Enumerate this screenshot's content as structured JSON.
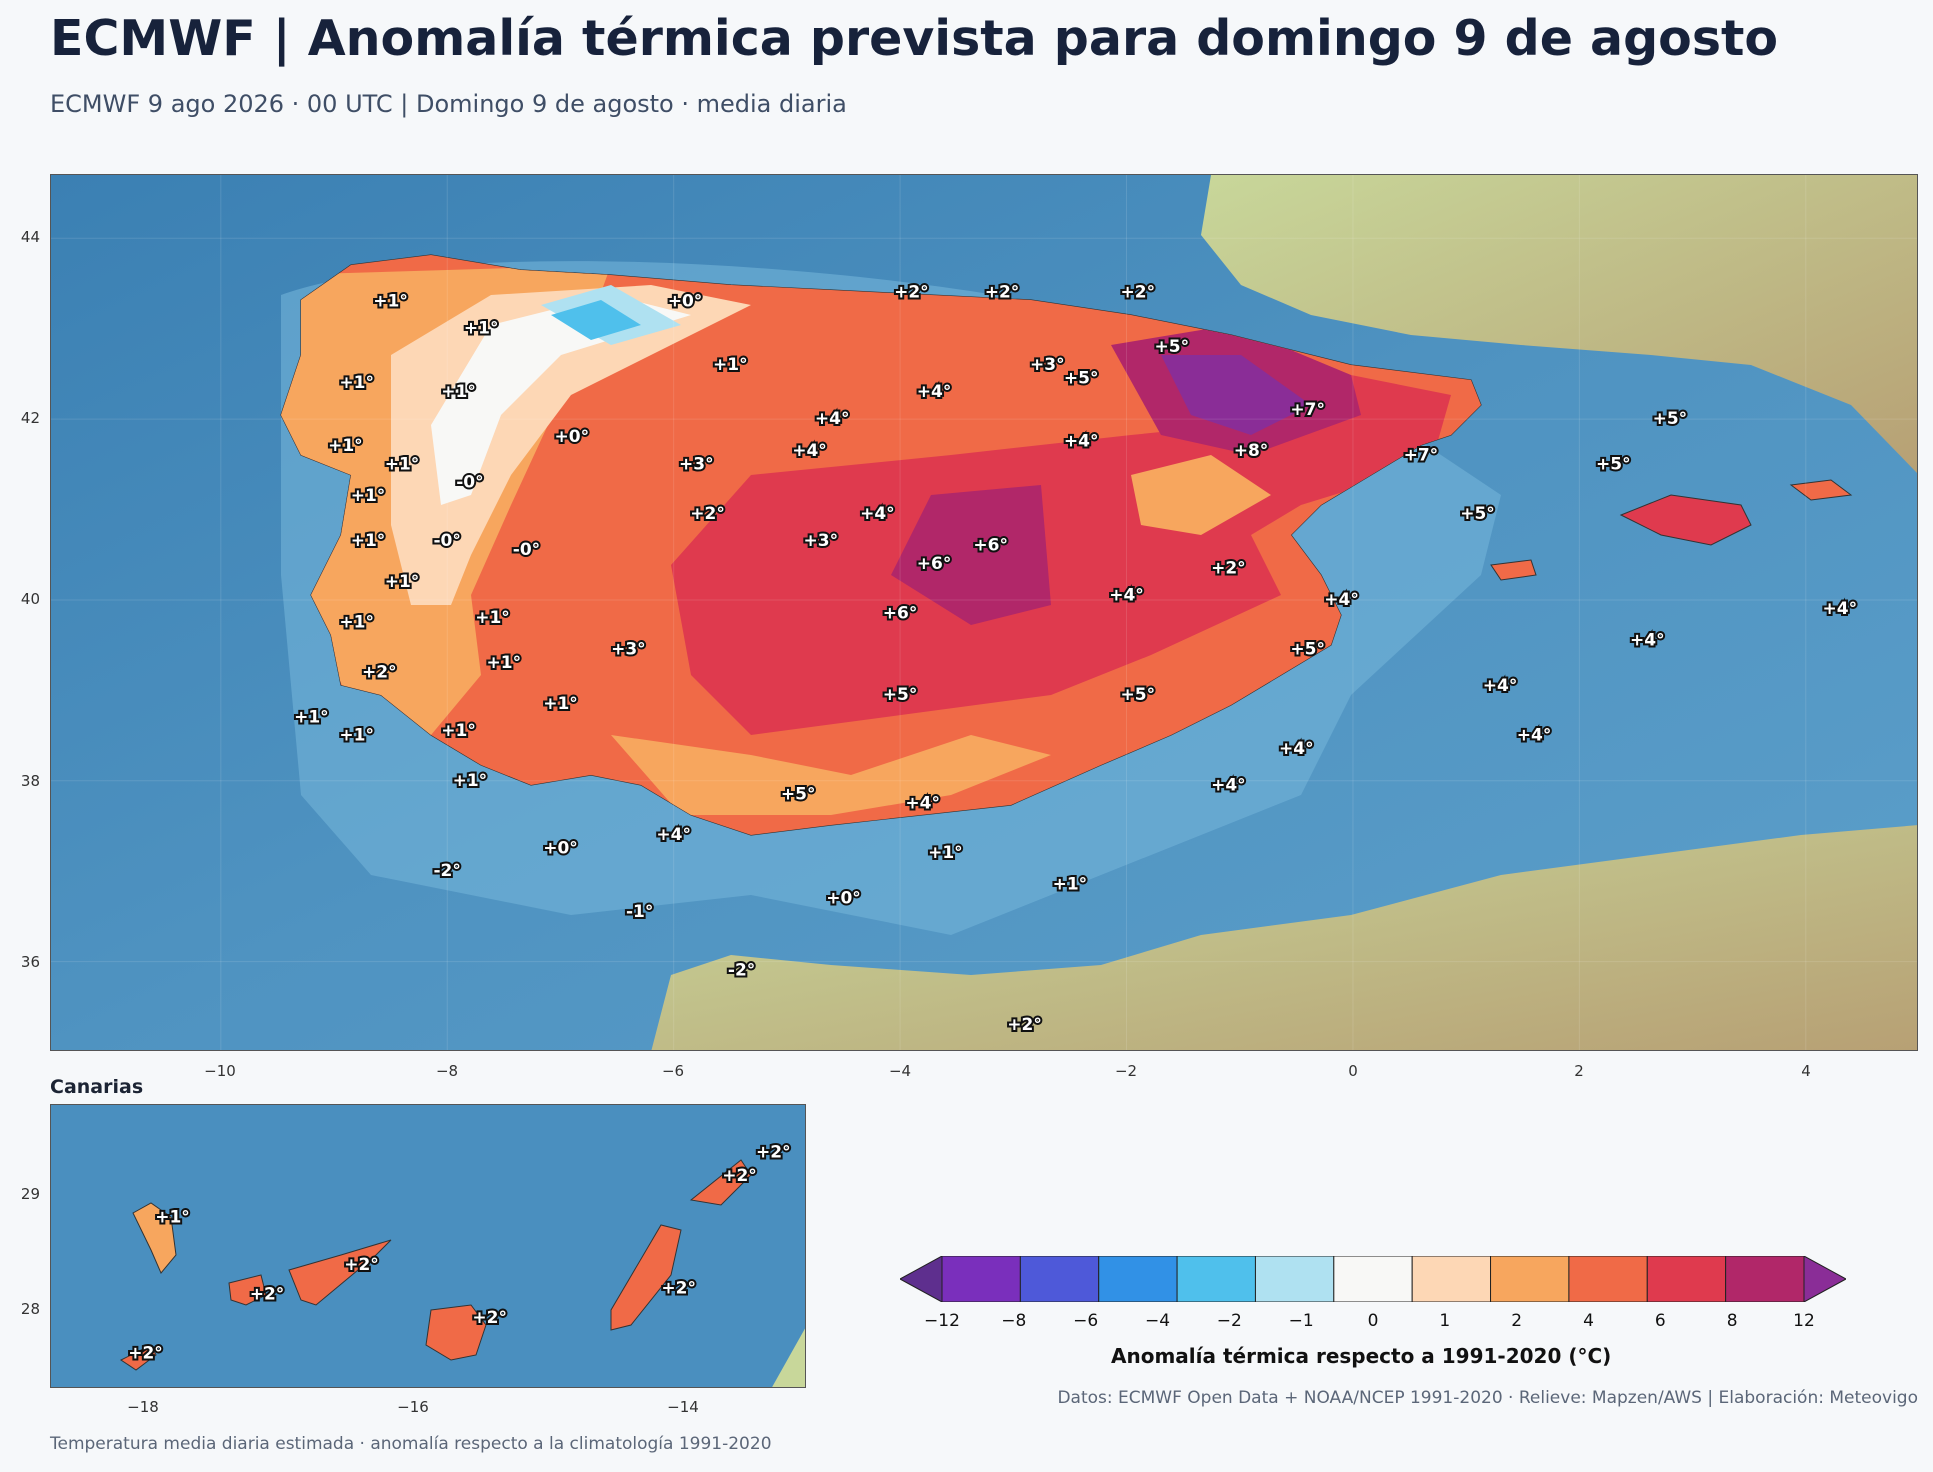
{
  "title": "ECMWF | Anomalía térmica prevista para domingo 9 de agosto",
  "subtitle": "ECMWF 9 ago 2026 · 00 UTC  |  Domingo 9 de agosto · media diaria",
  "main_map": {
    "lon_range": [
      -11.5,
      5.0
    ],
    "lat_range": [
      35.0,
      44.7
    ],
    "x_ticks": [
      "−10",
      "−8",
      "−6",
      "−4",
      "−2",
      "0",
      "2",
      "4"
    ],
    "x_tick_values": [
      -10,
      -8,
      -6,
      -4,
      -2,
      0,
      2,
      4
    ],
    "y_ticks": [
      "36",
      "38",
      "40",
      "42",
      "44"
    ],
    "y_tick_values": [
      36,
      38,
      40,
      42,
      44
    ],
    "labels": [
      {
        "t": "+1°",
        "lon": -8.5,
        "lat": 43.3
      },
      {
        "t": "+0°",
        "lon": -5.9,
        "lat": 43.3
      },
      {
        "t": "+2°",
        "lon": -3.9,
        "lat": 43.4
      },
      {
        "t": "+2°",
        "lon": -3.1,
        "lat": 43.4
      },
      {
        "t": "+2°",
        "lon": -1.9,
        "lat": 43.4
      },
      {
        "t": "+1°",
        "lon": -7.7,
        "lat": 43.0
      },
      {
        "t": "+5°",
        "lon": -1.6,
        "lat": 42.8
      },
      {
        "t": "+1°",
        "lon": -5.5,
        "lat": 42.6
      },
      {
        "t": "+3°",
        "lon": -2.7,
        "lat": 42.6
      },
      {
        "t": "+5°",
        "lon": -2.4,
        "lat": 42.45
      },
      {
        "t": "+1°",
        "lon": -8.8,
        "lat": 42.4
      },
      {
        "t": "+1°",
        "lon": -7.9,
        "lat": 42.3
      },
      {
        "t": "+4°",
        "lon": -3.7,
        "lat": 42.3
      },
      {
        "t": "+7°",
        "lon": -0.4,
        "lat": 42.1
      },
      {
        "t": "+4°",
        "lon": -4.6,
        "lat": 42.0
      },
      {
        "t": "+5°",
        "lon": 2.8,
        "lat": 42.0
      },
      {
        "t": "+0°",
        "lon": -6.9,
        "lat": 41.8
      },
      {
        "t": "+4°",
        "lon": -2.4,
        "lat": 41.75
      },
      {
        "t": "+1°",
        "lon": -8.9,
        "lat": 41.7
      },
      {
        "t": "+4°",
        "lon": -4.8,
        "lat": 41.65
      },
      {
        "t": "+8°",
        "lon": -0.9,
        "lat": 41.65
      },
      {
        "t": "+7°",
        "lon": 0.6,
        "lat": 41.6
      },
      {
        "t": "+1°",
        "lon": -8.4,
        "lat": 41.5
      },
      {
        "t": "+3°",
        "lon": -5.8,
        "lat": 41.5
      },
      {
        "t": "+5°",
        "lon": 2.3,
        "lat": 41.5
      },
      {
        "t": "-0°",
        "lon": -7.8,
        "lat": 41.3
      },
      {
        "t": "+1°",
        "lon": -8.7,
        "lat": 41.15
      },
      {
        "t": "+2°",
        "lon": -5.7,
        "lat": 40.95
      },
      {
        "t": "+4°",
        "lon": -4.2,
        "lat": 40.95
      },
      {
        "t": "+5°",
        "lon": 1.1,
        "lat": 40.95
      },
      {
        "t": "+1°",
        "lon": -8.7,
        "lat": 40.65
      },
      {
        "t": "-0°",
        "lon": -8.0,
        "lat": 40.65
      },
      {
        "t": "+3°",
        "lon": -4.7,
        "lat": 40.65
      },
      {
        "t": "+6°",
        "lon": -3.2,
        "lat": 40.6
      },
      {
        "t": "-0°",
        "lon": -7.3,
        "lat": 40.55
      },
      {
        "t": "+6°",
        "lon": -3.7,
        "lat": 40.4
      },
      {
        "t": "+2°",
        "lon": -1.1,
        "lat": 40.35
      },
      {
        "t": "+1°",
        "lon": -8.4,
        "lat": 40.2
      },
      {
        "t": "+4°",
        "lon": -2.0,
        "lat": 40.05
      },
      {
        "t": "+4°",
        "lon": -0.1,
        "lat": 40.0
      },
      {
        "t": "+4°",
        "lon": 4.3,
        "lat": 39.9
      },
      {
        "t": "+6°",
        "lon": -4.0,
        "lat": 39.85
      },
      {
        "t": "+1°",
        "lon": -7.6,
        "lat": 39.8
      },
      {
        "t": "+1°",
        "lon": -8.8,
        "lat": 39.75
      },
      {
        "t": "+4°",
        "lon": 2.6,
        "lat": 39.55
      },
      {
        "t": "+3°",
        "lon": -6.4,
        "lat": 39.45
      },
      {
        "t": "+5°",
        "lon": -0.4,
        "lat": 39.45
      },
      {
        "t": "+1°",
        "lon": -7.5,
        "lat": 39.3
      },
      {
        "t": "+2°",
        "lon": -8.6,
        "lat": 39.2
      },
      {
        "t": "+4°",
        "lon": 1.3,
        "lat": 39.05
      },
      {
        "t": "+5°",
        "lon": -4.0,
        "lat": 38.95
      },
      {
        "t": "+5°",
        "lon": -1.9,
        "lat": 38.95
      },
      {
        "t": "+1°",
        "lon": -7.0,
        "lat": 38.85
      },
      {
        "t": "+1°",
        "lon": -9.2,
        "lat": 38.7
      },
      {
        "t": "+1°",
        "lon": -7.9,
        "lat": 38.55
      },
      {
        "t": "+1°",
        "lon": -8.8,
        "lat": 38.5
      },
      {
        "t": "+4°",
        "lon": 1.6,
        "lat": 38.5
      },
      {
        "t": "+4°",
        "lon": -0.5,
        "lat": 38.35
      },
      {
        "t": "+1°",
        "lon": -7.8,
        "lat": 38.0
      },
      {
        "t": "+4°",
        "lon": -1.1,
        "lat": 37.95
      },
      {
        "t": "+5°",
        "lon": -4.9,
        "lat": 37.85
      },
      {
        "t": "+4°",
        "lon": -3.8,
        "lat": 37.75
      },
      {
        "t": "+4°",
        "lon": -6.0,
        "lat": 37.4
      },
      {
        "t": "+0°",
        "lon": -7.0,
        "lat": 37.25
      },
      {
        "t": "+1°",
        "lon": -3.6,
        "lat": 37.2
      },
      {
        "t": "-2°",
        "lon": -8.0,
        "lat": 37.0
      },
      {
        "t": "+1°",
        "lon": -2.5,
        "lat": 36.85
      },
      {
        "t": "+0°",
        "lon": -4.5,
        "lat": 36.7
      },
      {
        "t": "-1°",
        "lon": -6.3,
        "lat": 36.55
      },
      {
        "t": "-2°",
        "lon": -5.4,
        "lat": 35.9
      },
      {
        "t": "+2°",
        "lon": -2.9,
        "lat": 35.3
      }
    ]
  },
  "inset": {
    "title": "Canarias",
    "lon_range": [
      -18.8,
      -13.2
    ],
    "lat_range": [
      27.4,
      29.8
    ],
    "x_ticks": [
      "−18",
      "−16",
      "−14"
    ],
    "x_tick_values": [
      -18,
      -16,
      -14
    ],
    "y_ticks": [
      "28",
      "29"
    ],
    "y_tick_values": [
      28,
      29
    ],
    "labels": [
      {
        "t": "+1°",
        "lon": -17.9,
        "lat": 28.85
      },
      {
        "t": "+2°",
        "lon": -17.2,
        "lat": 28.2
      },
      {
        "t": "+2°",
        "lon": -16.5,
        "lat": 28.45
      },
      {
        "t": "+2°",
        "lon": -15.55,
        "lat": 28.0
      },
      {
        "t": "+2°",
        "lon": -14.15,
        "lat": 28.25
      },
      {
        "t": "+2°",
        "lon": -13.7,
        "lat": 29.2
      },
      {
        "t": "+2°",
        "lon": -13.45,
        "lat": 29.4
      },
      {
        "t": "+2°",
        "lon": -18.1,
        "lat": 27.7
      }
    ]
  },
  "colorbar": {
    "label": "Anomalía térmica respecto a 1991-2020 (°C)",
    "ticks": [
      "−12",
      "−8",
      "−6",
      "−4",
      "−2",
      "−1",
      "0",
      "1",
      "2",
      "4",
      "6",
      "8",
      "12"
    ],
    "colors": [
      "#5e2f8e",
      "#7a2fbc",
      "#4e59d9",
      "#3191e6",
      "#4fc0ec",
      "#afe1f1",
      "#f8f8f6",
      "#fdd7b5",
      "#f7a65e",
      "#f06a47",
      "#df3a4e",
      "#b12769",
      "#8a2d97"
    ]
  },
  "credits": "Datos: ECMWF Open Data + NOAA/NCEP 1991-2020 · Relieve: Mapzen/AWS  |  Elaboración: Meteovigo",
  "footnote": "Temperatura media diaria estimada · anomalía respecto a la climatología 1991-2020"
}
